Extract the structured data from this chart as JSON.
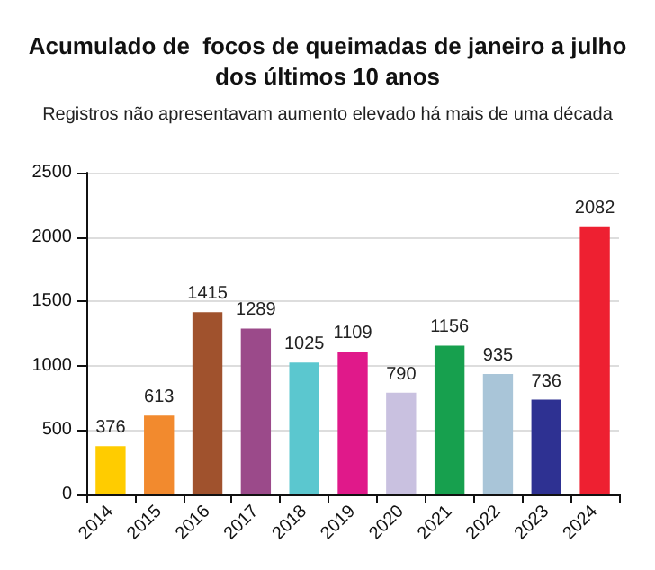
{
  "chart_data": {
    "type": "bar",
    "title": "Acumulado de  focos de queimadas de janeiro a julho\ndos últimos 10 anos",
    "subtitle": "Registros não apresentavam aumento elevado há mais de uma década",
    "categories": [
      "2014",
      "2015",
      "2016",
      "2017",
      "2018",
      "2019",
      "2020",
      "2021",
      "2022",
      "2023",
      "2024"
    ],
    "values": [
      376,
      613,
      1415,
      1289,
      1025,
      1109,
      790,
      1156,
      935,
      736,
      2082
    ],
    "colors": [
      "#ffcc00",
      "#f28a2e",
      "#a0522d",
      "#9b4a8a",
      "#5bc7cf",
      "#e0198a",
      "#c9c1e0",
      "#17a04e",
      "#a9c5d8",
      "#2e3192",
      "#ee2031"
    ],
    "ylim": [
      0,
      2500
    ],
    "yticks": [
      0,
      500,
      1000,
      1500,
      2000,
      2500
    ],
    "grid": "y",
    "data_labels": true
  }
}
